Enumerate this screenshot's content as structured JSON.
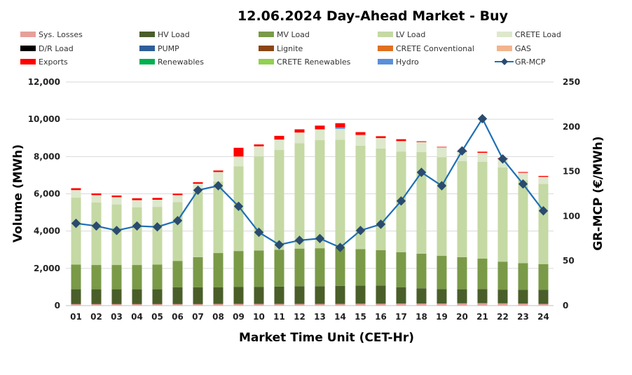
{
  "chart_data": {
    "type": "bar",
    "title": "12.06.2024  Day-Ahead Market - Buy",
    "xlabel": "Market Time Unit (CET-Hr)",
    "ylabel": "Volume (MWh)",
    "y2label": "GR-MCP (€/MWh)",
    "ylim": [
      0,
      12000
    ],
    "y2lim": [
      0,
      250
    ],
    "yticks": [
      "0",
      "2,000",
      "4,000",
      "6,000",
      "8,000",
      "10,000",
      "12,000"
    ],
    "y2ticks": [
      "0",
      "50",
      "100",
      "150",
      "200",
      "250"
    ],
    "categories": [
      "01",
      "02",
      "03",
      "04",
      "05",
      "06",
      "07",
      "08",
      "09",
      "10",
      "11",
      "12",
      "13",
      "14",
      "15",
      "16",
      "17",
      "18",
      "19",
      "20",
      "21",
      "22",
      "23",
      "24"
    ],
    "legend": [
      {
        "name": "Sys. Losses",
        "color": "#e6a09a",
        "kind": "bar"
      },
      {
        "name": "HV Load",
        "color": "#4a5e2a",
        "kind": "bar"
      },
      {
        "name": "MV Load",
        "color": "#7a9a48",
        "kind": "bar"
      },
      {
        "name": "LV Load",
        "color": "#c5d9a4",
        "kind": "bar"
      },
      {
        "name": "CRETE Load",
        "color": "#dde8cc",
        "kind": "bar"
      },
      {
        "name": "D/R Load",
        "color": "#000000",
        "kind": "bar"
      },
      {
        "name": "PUMP",
        "color": "#2e5e9a",
        "kind": "bar"
      },
      {
        "name": "Lignite",
        "color": "#8b4513",
        "kind": "bar"
      },
      {
        "name": "CRETE Conventional",
        "color": "#e07020",
        "kind": "bar"
      },
      {
        "name": "GAS",
        "color": "#f2b48c",
        "kind": "bar"
      },
      {
        "name": "Exports",
        "color": "#ff0000",
        "kind": "bar"
      },
      {
        "name": "Renewables",
        "color": "#00b050",
        "kind": "bar"
      },
      {
        "name": "CRETE Renewables",
        "color": "#92d050",
        "kind": "bar"
      },
      {
        "name": "Hydro",
        "color": "#5b8fd9",
        "kind": "bar"
      },
      {
        "name": "GR-MCP",
        "color": "#1f6fb4",
        "kind": "line"
      }
    ],
    "series": [
      {
        "name": "Sys. Losses",
        "color": "#e6a09a",
        "values": [
          80,
          80,
          80,
          80,
          80,
          80,
          80,
          90,
          90,
          90,
          90,
          90,
          90,
          90,
          100,
          100,
          110,
          110,
          110,
          120,
          130,
          120,
          110,
          90
        ]
      },
      {
        "name": "HV Load",
        "color": "#4a5e2a",
        "values": [
          800,
          800,
          800,
          800,
          800,
          900,
          900,
          900,
          920,
          920,
          930,
          950,
          950,
          970,
          970,
          980,
          880,
          820,
          780,
          760,
          760,
          740,
          740,
          760
        ]
      },
      {
        "name": "MV Load",
        "color": "#7a9a48",
        "values": [
          1320,
          1300,
          1300,
          1300,
          1320,
          1420,
          1620,
          1830,
          1920,
          1950,
          1980,
          2020,
          2040,
          2040,
          1960,
          1900,
          1880,
          1860,
          1780,
          1720,
          1630,
          1500,
          1430,
          1380
        ]
      },
      {
        "name": "LV Load",
        "color": "#c5d9a4",
        "values": [
          3600,
          3350,
          3250,
          3100,
          3100,
          3150,
          3500,
          3850,
          4550,
          5050,
          5350,
          5650,
          5800,
          5800,
          5550,
          5450,
          5400,
          5450,
          5300,
          5150,
          5200,
          5050,
          4450,
          4300
        ]
      },
      {
        "name": "CRETE Load",
        "color": "#dde8cc",
        "values": [
          400,
          400,
          390,
          380,
          380,
          380,
          440,
          500,
          520,
          540,
          560,
          580,
          580,
          590,
          580,
          560,
          560,
          540,
          520,
          500,
          480,
          450,
          400,
          380
        ]
      },
      {
        "name": "Hydro",
        "color": "#5b8fd9",
        "values": [
          0,
          0,
          0,
          0,
          0,
          0,
          0,
          0,
          0,
          0,
          0,
          0,
          0,
          80,
          0,
          0,
          0,
          0,
          0,
          0,
          0,
          0,
          0,
          0
        ]
      },
      {
        "name": "Exports",
        "color": "#ff0000",
        "values": [
          100,
          90,
          90,
          100,
          100,
          80,
          80,
          80,
          470,
          100,
          200,
          170,
          200,
          220,
          150,
          100,
          100,
          40,
          30,
          50,
          60,
          60,
          40,
          50
        ]
      }
    ],
    "line": {
      "name": "GR-MCP",
      "color": "#1f6fb4",
      "values": [
        92,
        89,
        84,
        89,
        88,
        95,
        129,
        134,
        111,
        82,
        68,
        73,
        75,
        65,
        84,
        91,
        117,
        149,
        134,
        173,
        209,
        164,
        136,
        106
      ]
    }
  }
}
